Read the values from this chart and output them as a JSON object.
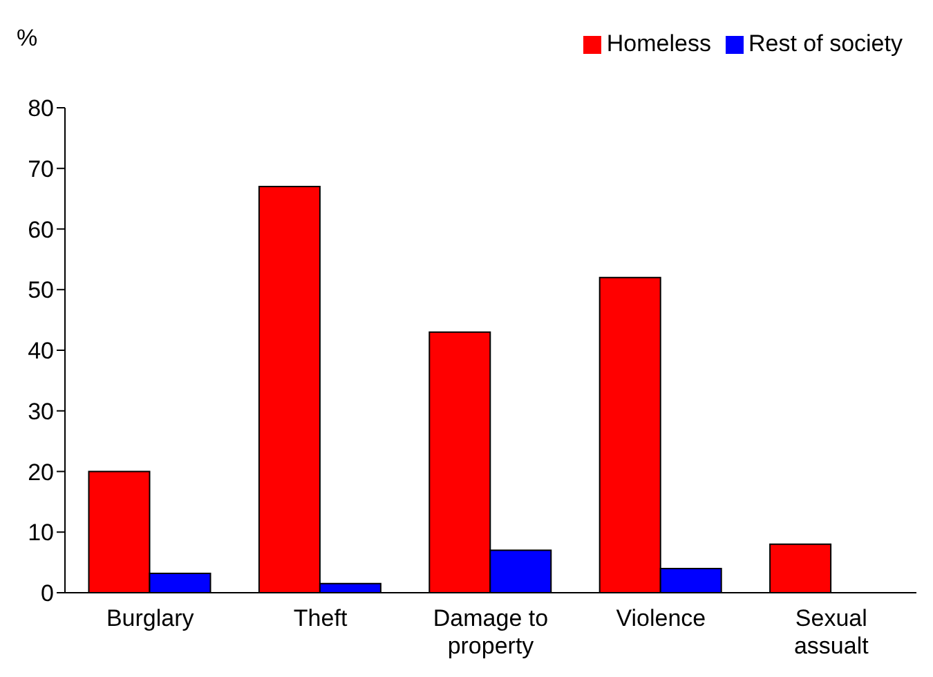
{
  "chart_data": {
    "type": "bar",
    "ylabel": "%",
    "categories": [
      "Burglary",
      "Theft",
      "Damage to property",
      "Violence",
      "Sexual assualt"
    ],
    "series": [
      {
        "name": "Homeless",
        "color": "#ff0000",
        "values": [
          20,
          67,
          43,
          52,
          8
        ]
      },
      {
        "name": "Rest of society",
        "color": "#0000ff",
        "values": [
          3.2,
          1.5,
          7,
          4,
          null
        ]
      }
    ],
    "ylim": [
      0,
      80
    ],
    "yticks": [
      0,
      10,
      20,
      30,
      40,
      50,
      60,
      70,
      80
    ],
    "grid": false,
    "legend": "top right"
  }
}
